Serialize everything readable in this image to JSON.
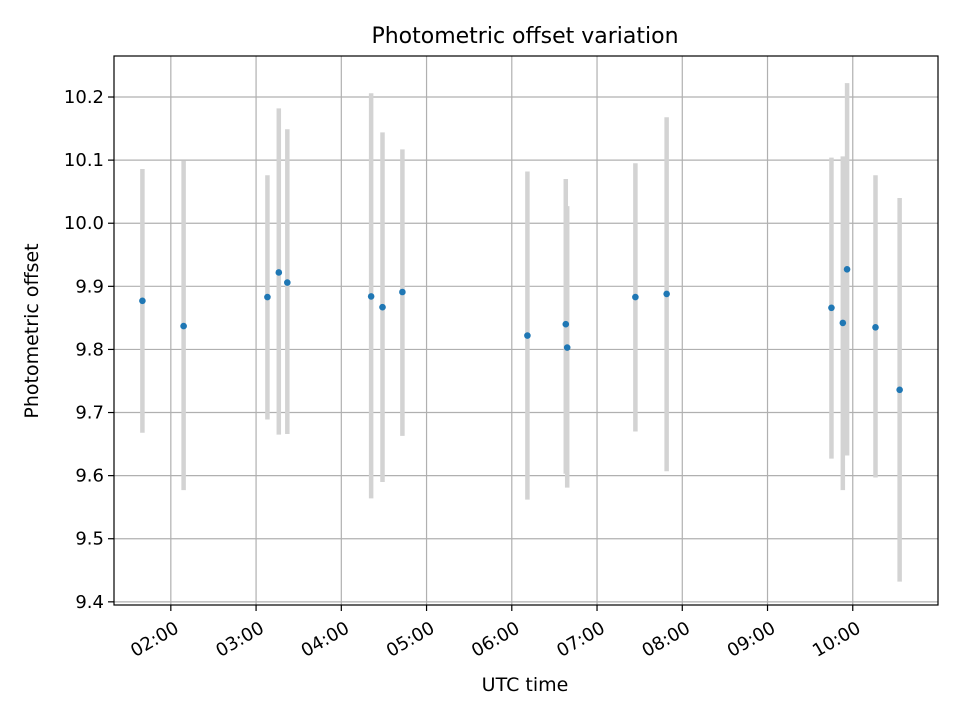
{
  "chart_data": {
    "type": "scatter",
    "title": "Photometric offset variation",
    "xlabel": "UTC time",
    "ylabel": "Photometric offset",
    "x_range": [
      "01:20",
      "11:00"
    ],
    "ylim": [
      9.395,
      10.265
    ],
    "x_ticks": [
      "02:00",
      "03:00",
      "04:00",
      "05:00",
      "06:00",
      "07:00",
      "08:00",
      "09:00",
      "10:00"
    ],
    "y_ticks": [
      9.4,
      9.5,
      9.6,
      9.7,
      9.8,
      9.9,
      10.0,
      10.1,
      10.2
    ],
    "grid": true,
    "marker_color": "#1f77b4",
    "errorbar_color": "#d3d3d3",
    "points": [
      {
        "x": "01:40",
        "y": 9.877,
        "ylow": 9.668,
        "yhigh": 10.086
      },
      {
        "x": "02:09",
        "y": 9.837,
        "ylow": 9.577,
        "yhigh": 10.099
      },
      {
        "x": "03:08",
        "y": 9.883,
        "ylow": 9.689,
        "yhigh": 10.076
      },
      {
        "x": "03:16",
        "y": 9.922,
        "ylow": 9.665,
        "yhigh": 10.182
      },
      {
        "x": "03:22",
        "y": 9.906,
        "ylow": 9.666,
        "yhigh": 10.149
      },
      {
        "x": "04:21",
        "y": 9.884,
        "ylow": 9.564,
        "yhigh": 10.206
      },
      {
        "x": "04:29",
        "y": 9.867,
        "ylow": 9.59,
        "yhigh": 10.144
      },
      {
        "x": "04:43",
        "y": 9.891,
        "ylow": 9.663,
        "yhigh": 10.117
      },
      {
        "x": "06:11",
        "y": 9.822,
        "ylow": 9.562,
        "yhigh": 10.082
      },
      {
        "x": "06:38",
        "y": 9.84,
        "ylow": 9.603,
        "yhigh": 10.07
      },
      {
        "x": "06:39",
        "y": 9.803,
        "ylow": 9.581,
        "yhigh": 10.027
      },
      {
        "x": "07:27",
        "y": 9.883,
        "ylow": 9.67,
        "yhigh": 10.095
      },
      {
        "x": "07:49",
        "y": 9.888,
        "ylow": 9.607,
        "yhigh": 10.168
      },
      {
        "x": "09:45",
        "y": 9.866,
        "ylow": 9.627,
        "yhigh": 10.104
      },
      {
        "x": "09:53",
        "y": 9.842,
        "ylow": 9.577,
        "yhigh": 10.106
      },
      {
        "x": "09:56",
        "y": 9.927,
        "ylow": 9.632,
        "yhigh": 10.222
      },
      {
        "x": "10:16",
        "y": 9.835,
        "ylow": 9.597,
        "yhigh": 10.076
      },
      {
        "x": "10:33",
        "y": 9.736,
        "ylow": 9.432,
        "yhigh": 10.04
      }
    ]
  }
}
